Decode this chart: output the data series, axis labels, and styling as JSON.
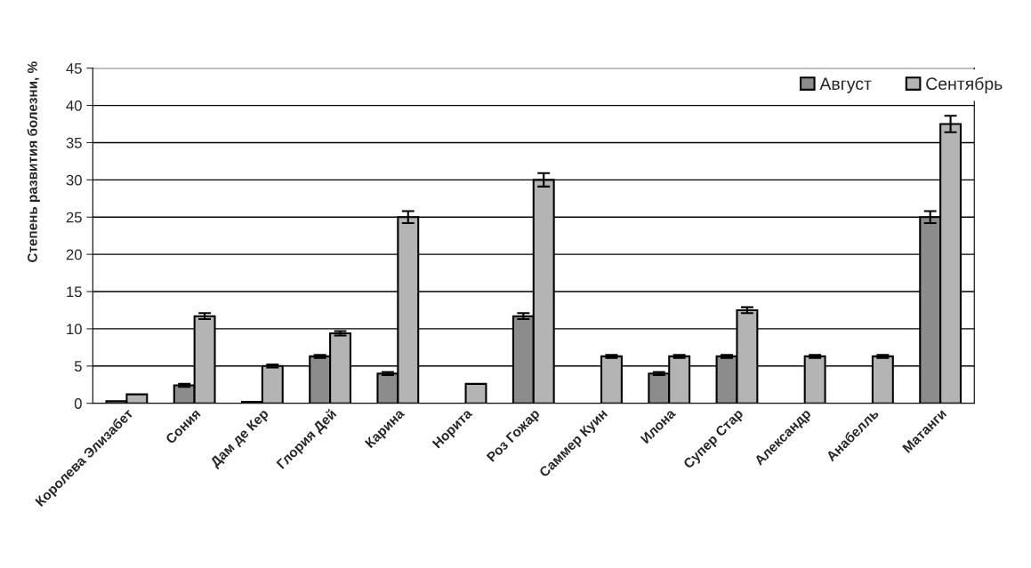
{
  "chart_data": {
    "type": "bar",
    "ylabel": "Степень развития болезни, %",
    "categories": [
      "Королева Элизабет",
      "Сония",
      "Дам де Кер",
      "Глория Дей",
      "Карина",
      "Норита",
      "Роз Гожар",
      "Саммер Куин",
      "Илона",
      "Супер Стар",
      "Александр",
      "Анабелль",
      "Матанги"
    ],
    "series": [
      {
        "name": "Август",
        "color": "#8c8c8c",
        "values": [
          0.3,
          2.4,
          0.2,
          6.3,
          4.0,
          0,
          11.7,
          0,
          4.0,
          6.3,
          0,
          0,
          25.0
        ],
        "errors": [
          null,
          0.2,
          null,
          0.2,
          0.2,
          null,
          0.4,
          null,
          0.2,
          0.2,
          null,
          null,
          0.8
        ]
      },
      {
        "name": "Сентябрь",
        "color": "#b4b4b4",
        "values": [
          1.2,
          11.7,
          5.0,
          9.4,
          25.0,
          2.6,
          30.0,
          6.3,
          6.3,
          12.5,
          6.3,
          6.3,
          37.5
        ],
        "errors": [
          null,
          0.4,
          0.2,
          0.3,
          0.8,
          null,
          0.9,
          0.2,
          0.2,
          0.4,
          0.2,
          0.2,
          1.1
        ]
      }
    ],
    "ylim": [
      0,
      45
    ],
    "yticks": [
      0,
      5,
      10,
      15,
      20,
      25,
      30,
      35,
      40,
      45
    ],
    "grid": "y",
    "legend": "top right"
  }
}
